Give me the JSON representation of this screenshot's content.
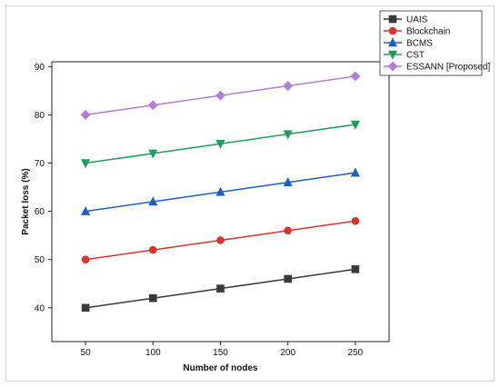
{
  "chart_data": {
    "type": "line",
    "title": "",
    "xlabel": "Number of nodes",
    "ylabel": "Packet loss (%)",
    "x": [
      50,
      100,
      150,
      200,
      250
    ],
    "xlim": [
      25,
      275
    ],
    "ylim": [
      33,
      91
    ],
    "xticks": [
      "50",
      "100",
      "150",
      "200",
      "250"
    ],
    "yticks": [
      "40",
      "50",
      "60",
      "70",
      "80",
      "90"
    ],
    "grid": false,
    "legend_position": "top-right",
    "series": [
      {
        "name": "UAIS",
        "values": [
          40,
          42,
          44,
          46,
          48
        ],
        "color": "#3a3a3a",
        "marker": "square"
      },
      {
        "name": "Blockchain",
        "values": [
          50,
          52,
          54,
          56,
          58
        ],
        "color": "#d9342b",
        "marker": "circle"
      },
      {
        "name": "BCMS",
        "values": [
          60,
          62,
          64,
          66,
          68
        ],
        "color": "#1f5fc1",
        "marker": "triangle-up"
      },
      {
        "name": "CST",
        "values": [
          70,
          72,
          74,
          76,
          78
        ],
        "color": "#1f9e5a",
        "marker": "triangle-down"
      },
      {
        "name": "ESSANN [Proposed]",
        "values": [
          80,
          82,
          84,
          86,
          88
        ],
        "color": "#b57ddb",
        "marker": "diamond"
      }
    ]
  }
}
